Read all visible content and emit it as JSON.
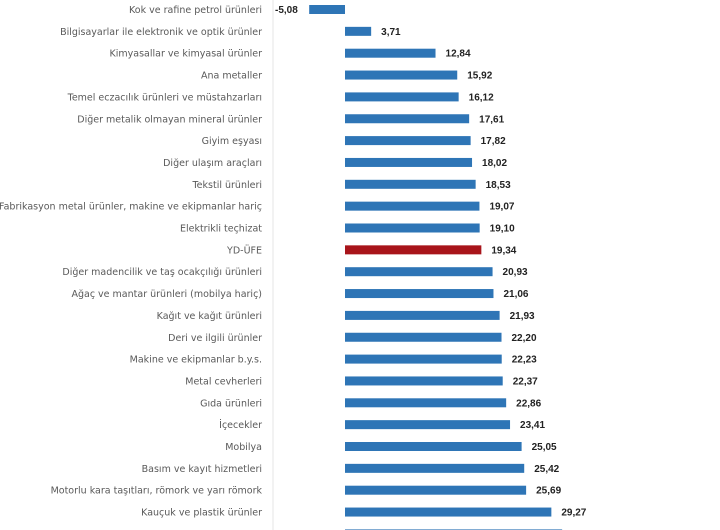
{
  "chart_data": {
    "type": "bar",
    "orientation": "horizontal",
    "title": "",
    "xlabel": "",
    "ylabel": "",
    "grid": false,
    "legend": "none",
    "decimal_separator": ",",
    "colors": {
      "default": "#2e75b6",
      "highlight": "#a8141a"
    },
    "highlight_category": "YD-ÜFE",
    "categories": [
      "Kok ve rafine petrol ürünleri",
      "Bilgisayarlar ile elektronik ve optik ürünler",
      "Kimyasallar ve kimyasal ürünler",
      "Ana metaller",
      "Temel eczacılık ürünleri ve müstahzarları",
      "Diğer metalik olmayan mineral ürünler",
      "Giyim eşyası",
      "Diğer ulaşım araçları",
      "Tekstil ürünleri",
      "Fabrikasyon metal ürünler, makine ve ekipmanlar hariç",
      "Elektrikli teçhizat",
      "YD-ÜFE",
      "Diğer madencilik ve taş ocakçılığı ürünleri",
      "Ağaç ve mantar ürünleri (mobilya hariç)",
      "Kağıt ve kağıt ürünleri",
      "Deri ve ilgili ürünler",
      "Makine ve ekipmanlar b.y.s.",
      "Metal cevherleri",
      "Gıda ürünleri",
      "İçecekler",
      "Mobilya",
      "Basım ve kayıt hizmetleri",
      "Motorlu kara taşıtları, römork ve yarı römork",
      "Kauçuk ve plastik ürünler",
      ""
    ],
    "values": [
      -5.08,
      3.71,
      12.84,
      15.92,
      16.12,
      17.61,
      17.82,
      18.02,
      18.53,
      19.07,
      19.1,
      19.34,
      20.93,
      21.06,
      21.93,
      22.2,
      22.23,
      22.37,
      22.86,
      23.41,
      25.05,
      25.42,
      25.69,
      29.27,
      30.8
    ],
    "value_labels": [
      "-5,08",
      "3,71",
      "12,84",
      "15,92",
      "16,12",
      "17,61",
      "17,82",
      "18,02",
      "18,53",
      "19,07",
      "19,10",
      "19,34",
      "20,93",
      "21,06",
      "21,93",
      "22,20",
      "22,23",
      "22,37",
      "22,86",
      "23,41",
      "25,05",
      "25,42",
      "25,69",
      "29,27",
      ""
    ],
    "xlim": [
      -10,
      35
    ]
  }
}
